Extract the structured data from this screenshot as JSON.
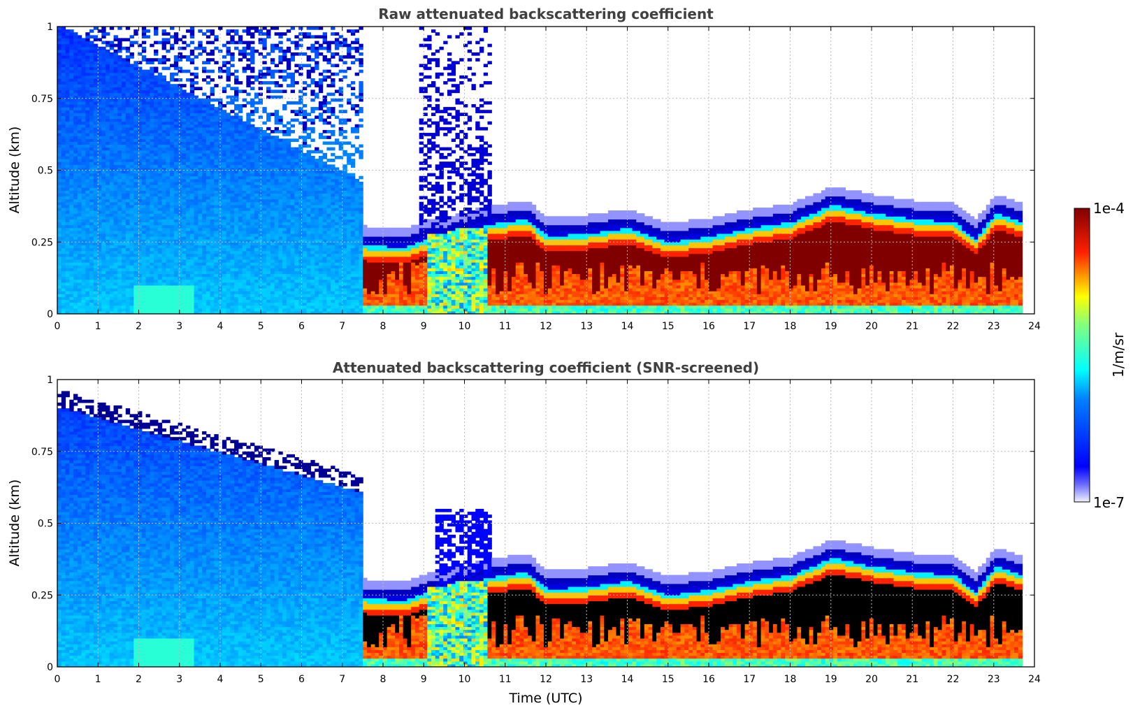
{
  "chart_data": [
    {
      "type": "heatmap",
      "title": "Raw attenuated backscattering coefficient",
      "xlabel": "",
      "ylabel": "Altitude (km)",
      "xlim": [
        0,
        24
      ],
      "ylim": [
        0,
        1
      ],
      "xticks": [
        "0",
        "1",
        "2",
        "3",
        "4",
        "5",
        "6",
        "7",
        "8",
        "9",
        "10",
        "11",
        "12",
        "13",
        "14",
        "15",
        "16",
        "17",
        "18",
        "19",
        "20",
        "21",
        "22",
        "23",
        "24"
      ],
      "yticks": [
        "0",
        "0.25",
        "0.5",
        "0.75",
        "1"
      ],
      "grid": true,
      "data_end_hour": 23.7,
      "regimes": [
        {
          "from": 0,
          "to": 7.5,
          "description": "clear air, noisy signal up to 1 km",
          "log10_beta_surface": -6.0,
          "log10_beta_top": -6.6
        },
        {
          "from": 7.5,
          "to": 23.7,
          "description": "low cloud layer",
          "cloud_top_km": 0.3,
          "log10_beta_core": -4.0
        }
      ],
      "cloud_top_km": [
        {
          "hour": 7.6,
          "value": 0.25
        },
        {
          "hour": 8.5,
          "value": 0.24
        },
        {
          "hour": 9.0,
          "value": 0.27
        },
        {
          "hour": 9.5,
          "value": 0.28
        },
        {
          "hour": 10.5,
          "value": 0.32
        },
        {
          "hour": 11.5,
          "value": 0.34
        },
        {
          "hour": 12.0,
          "value": 0.28
        },
        {
          "hour": 13.0,
          "value": 0.29
        },
        {
          "hour": 14.0,
          "value": 0.31
        },
        {
          "hour": 15.0,
          "value": 0.26
        },
        {
          "hour": 16.0,
          "value": 0.28
        },
        {
          "hour": 17.0,
          "value": 0.31
        },
        {
          "hour": 18.0,
          "value": 0.33
        },
        {
          "hour": 19.0,
          "value": 0.39
        },
        {
          "hour": 20.0,
          "value": 0.36
        },
        {
          "hour": 21.0,
          "value": 0.34
        },
        {
          "hour": 22.0,
          "value": 0.33
        },
        {
          "hour": 22.5,
          "value": 0.27
        },
        {
          "hour": 23.0,
          "value": 0.36
        },
        {
          "hour": 23.7,
          "value": 0.33
        }
      ]
    },
    {
      "type": "heatmap",
      "title": "Attenuated backscattering coefficient (SNR-screened)",
      "xlabel": "Time (UTC)",
      "ylabel": "Altitude (km)",
      "xlim": [
        0,
        24
      ],
      "ylim": [
        0,
        1
      ],
      "xticks": [
        "0",
        "1",
        "2",
        "3",
        "4",
        "5",
        "6",
        "7",
        "8",
        "9",
        "10",
        "11",
        "12",
        "13",
        "14",
        "15",
        "16",
        "17",
        "18",
        "19",
        "20",
        "21",
        "22",
        "23",
        "24"
      ],
      "yticks": [
        "0",
        "0.25",
        "0.5",
        "0.75",
        "1"
      ],
      "grid": true,
      "data_end_hour": 23.7,
      "regimes": [
        {
          "from": 0,
          "to": 7.5,
          "description": "clear air, screened signal top decreasing from 0.9 km to 0.6 km"
        },
        {
          "from": 7.5,
          "to": 23.7,
          "description": "low cloud layer with saturated (black) core",
          "cloud_top_km": 0.3
        }
      ]
    }
  ],
  "colorbar": {
    "label": "1/m/sr",
    "max_label": "1e-4",
    "min_label": "1e-7",
    "log10_min": -7,
    "log10_max": -4,
    "colormap": "jet",
    "colors": [
      "#eeeeff",
      "#0000ff",
      "#00ffff",
      "#ffff00",
      "#ff0000",
      "#800000"
    ]
  }
}
